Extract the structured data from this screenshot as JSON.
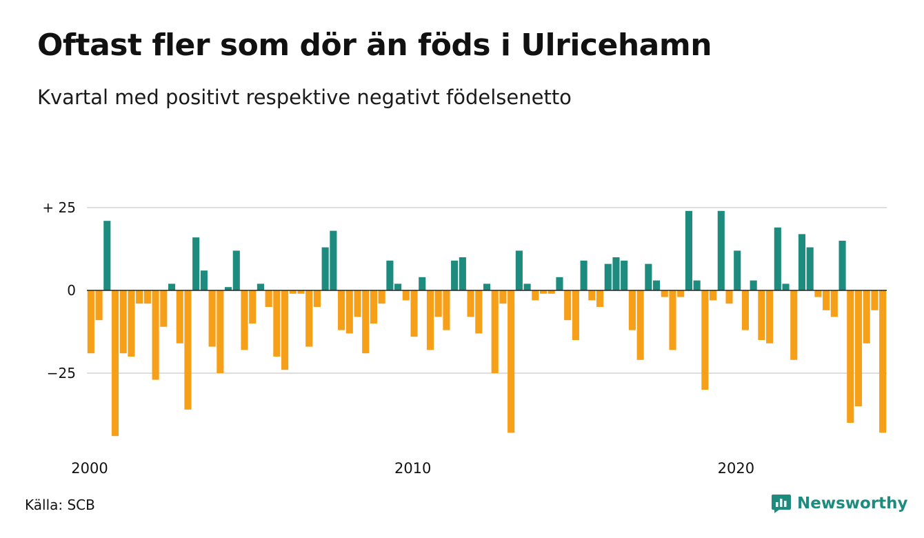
{
  "header": {
    "title": "Oftast fler som dör än föds i Ulricehamn",
    "subtitle": "Kvartal med positivt respektive negativt födelsenetto"
  },
  "footer": {
    "source": "Källa: SCB",
    "brand": "Newsworthy"
  },
  "colors": {
    "positive": "#1d8c7f",
    "negative": "#f6a01a",
    "grid": "#dddddd",
    "zero_line": "#222222"
  },
  "chart_data": {
    "type": "bar",
    "title": "Oftast fler som dör än föds i Ulricehamn",
    "subtitle": "Kvartal med positivt respektive negativt födelsenetto",
    "x_start": "2000 Q1",
    "frequency": "quarterly",
    "ylim": [
      -45,
      25
    ],
    "y_ticks": [
      {
        "value": 25,
        "label": "+ 25"
      },
      {
        "value": 0,
        "label": "0"
      },
      {
        "value": -25,
        "label": "−25"
      }
    ],
    "x_ticks": [
      {
        "index": 0,
        "label": "2000"
      },
      {
        "index": 40,
        "label": "2010"
      },
      {
        "index": 80,
        "label": "2020"
      }
    ],
    "grid": true,
    "legend": "none",
    "series": [
      {
        "values": [
          -19,
          -9,
          21,
          -44,
          -19,
          -20,
          -4,
          -4,
          -27,
          -11,
          2,
          -16,
          -36,
          16,
          6,
          -17,
          -25,
          1,
          12,
          -18,
          -10,
          2,
          -5,
          -20,
          -24,
          -1,
          -1,
          -17,
          -5,
          13,
          18,
          -12,
          -13,
          -8,
          -19,
          -10,
          -4,
          9,
          2,
          -3,
          -14,
          4,
          -18,
          -8,
          -12,
          9,
          10,
          -8,
          -13,
          2,
          -25,
          -4,
          -43,
          12,
          2,
          -3,
          -1,
          -1,
          4,
          -9,
          -15,
          9,
          -3,
          -5,
          8,
          10,
          9,
          -12,
          -21,
          8,
          3,
          -2,
          -18,
          -2,
          24,
          3,
          -30,
          -3,
          24,
          -4,
          12,
          -12,
          3,
          -15,
          -16,
          19,
          2,
          -21,
          17,
          13,
          -2,
          -6,
          -8,
          15,
          -40,
          -35,
          -16,
          -6,
          -43
        ]
      }
    ]
  }
}
